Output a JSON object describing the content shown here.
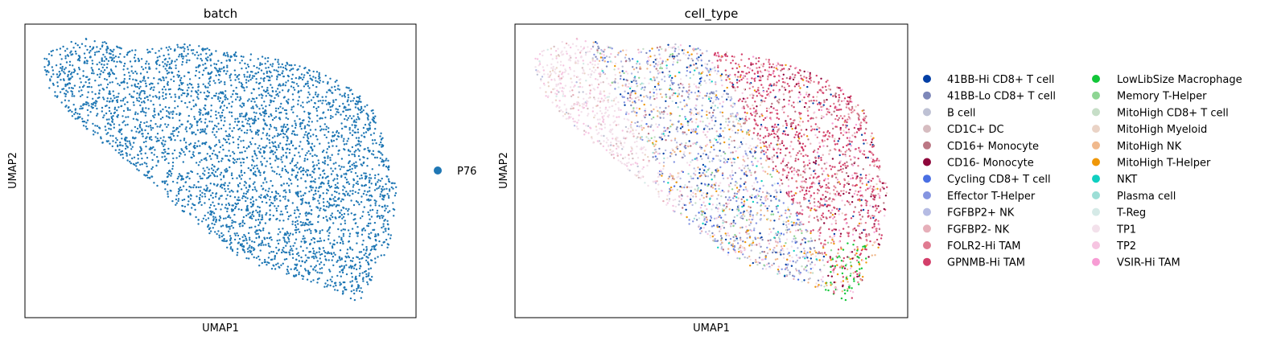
{
  "chart_data": [
    {
      "type": "scatter",
      "title": "batch",
      "xlabel": "UMAP1",
      "ylabel": "UMAP2",
      "xticks": [],
      "yticks": [],
      "grid": false,
      "legend_placement": "right",
      "legend": [
        {
          "name": "P76",
          "color": "#1f77b4"
        }
      ]
    },
    {
      "type": "scatter",
      "title": "cell_type",
      "xlabel": "UMAP1",
      "ylabel": "UMAP2",
      "xticks": [],
      "yticks": [],
      "grid": false,
      "legend_placement": "right",
      "legend": [
        {
          "name": "41BB-Hi CD8+ T cell",
          "color": "#023fa5"
        },
        {
          "name": "41BB-Lo CD8+ T cell",
          "color": "#7d87b9"
        },
        {
          "name": "B cell",
          "color": "#bec1d4"
        },
        {
          "name": "CD1C+ DC",
          "color": "#d6bcc0"
        },
        {
          "name": "CD16+ Monocyte",
          "color": "#bb7784"
        },
        {
          "name": "CD16- Monocyte",
          "color": "#8e063b"
        },
        {
          "name": "Cycling CD8+ T cell",
          "color": "#4a6fe3"
        },
        {
          "name": "Effector T-Helper",
          "color": "#8595e1"
        },
        {
          "name": "FGFBP2+ NK",
          "color": "#b5bbe3"
        },
        {
          "name": "FGFBP2- NK",
          "color": "#e6afb9"
        },
        {
          "name": "FOLR2-Hi TAM",
          "color": "#e07b91"
        },
        {
          "name": "GPNMB-Hi TAM",
          "color": "#d33f6a"
        },
        {
          "name": "LowLibSize Macrophage",
          "color": "#11c638"
        },
        {
          "name": "Memory T-Helper",
          "color": "#8dd593"
        },
        {
          "name": "MitoHigh CD8+ T cell",
          "color": "#c6dec7"
        },
        {
          "name": "MitoHigh Myeloid",
          "color": "#ead3c6"
        },
        {
          "name": "MitoHigh NK",
          "color": "#f0b98d"
        },
        {
          "name": "MitoHigh T-Helper",
          "color": "#ef9708"
        },
        {
          "name": "NKT",
          "color": "#0fcfc0"
        },
        {
          "name": "Plasma cell",
          "color": "#9cded6"
        },
        {
          "name": "T-Reg",
          "color": "#d5eae7"
        },
        {
          "name": "TP1",
          "color": "#f3e1eb"
        },
        {
          "name": "TP2",
          "color": "#f6c4e1"
        },
        {
          "name": "VSIR-Hi TAM",
          "color": "#f79cd4"
        }
      ]
    }
  ]
}
